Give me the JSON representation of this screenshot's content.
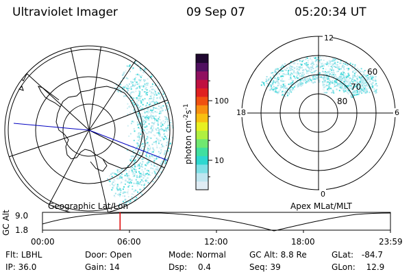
{
  "header": {
    "title": "Ultraviolet Imager",
    "date": "09 Sep 07",
    "time": "05:20:34 UT"
  },
  "colorbar": {
    "unit": "photon cm",
    "unit_exp1": "-2",
    "unit_s": "s",
    "unit_exp2": "-1",
    "tick_100": "100",
    "tick_10": "10",
    "colors_bottom_to_top": [
      "#e0ecf4",
      "#bfe6f0",
      "#7fe0e6",
      "#2ed8d0",
      "#40e0a0",
      "#70e870",
      "#b0f040",
      "#e8f020",
      "#f8c010",
      "#f89010",
      "#f05010",
      "#e02020",
      "#c01040",
      "#901060",
      "#501060",
      "#200830"
    ]
  },
  "geo_plot": {
    "label": "Geographic Lat/Lon"
  },
  "apex_plot": {
    "label": "Apex MLat/MLT",
    "mlt_12": "12",
    "mlt_18": "18",
    "mlt_6": "6",
    "mlt_0": "0",
    "lat_60": "60",
    "lat_70": "70",
    "lat_80": "80"
  },
  "altitude_panel": {
    "ylabel": "GC Alt",
    "ytick_top": "9.0",
    "ytick_bottom": "1.8",
    "xticks": [
      "00:00",
      "06:00",
      "12:00",
      "18:00",
      "23:59"
    ],
    "current_time_fraction": 0.223
  },
  "info": {
    "flt_label": "Flt:",
    "flt_value": "LBHL",
    "door_label": "Door:",
    "door_value": "Open",
    "mode_label": "Mode:",
    "mode_value": "Normal",
    "gcalt_label": "GC Alt:",
    "gcalt_value": "8.8 Re",
    "glat_label": "GLat:",
    "glat_value": "-84.7",
    "ip_label": "IP:",
    "ip_value": "36.0",
    "gain_label": "Gain:",
    "gain_value": "14",
    "dsp_label": "Dsp:",
    "dsp_value": "0.4",
    "seq_label": "Seq:",
    "seq_value": "39",
    "glon_label": "GLon:",
    "glon_value": "12.9"
  }
}
